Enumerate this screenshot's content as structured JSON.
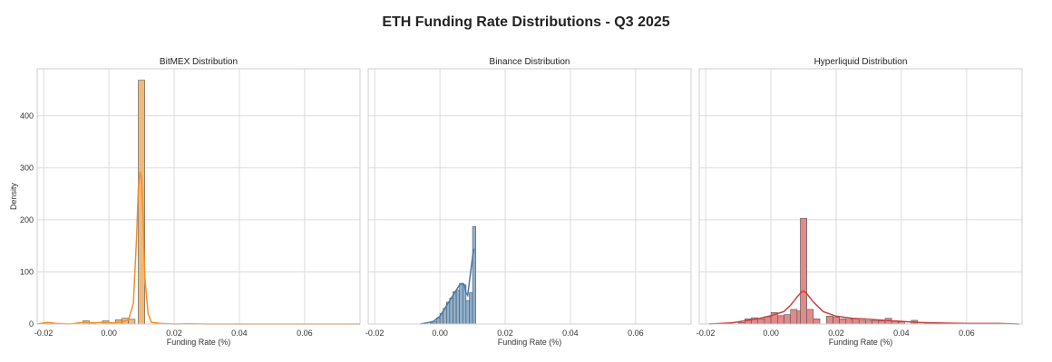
{
  "title": "ETH Funding Rate Distributions - Q3 2025",
  "chart_data": [
    {
      "type": "histogram",
      "title": "BitMEX Distribution",
      "xlabel": "Funding Rate (%)",
      "ylabel": "Density",
      "xlim": [
        -0.022,
        0.077
      ],
      "ylim": [
        0,
        490
      ],
      "xticks": [
        "-0.02",
        "0.00",
        "0.02",
        "0.04",
        "0.06"
      ],
      "yticks": [
        "0",
        "100",
        "200",
        "300",
        "400"
      ],
      "grid": true,
      "bar_color": "#f0b97a",
      "line_color": "#f28e2b",
      "bins": [
        {
          "x0": -0.02,
          "x1": -0.018,
          "y": 3
        },
        {
          "x0": -0.008,
          "x1": -0.006,
          "y": 6
        },
        {
          "x0": -0.006,
          "x1": -0.004,
          "y": 3
        },
        {
          "x0": -0.002,
          "x1": 0.0,
          "y": 6
        },
        {
          "x0": 0.002,
          "x1": 0.004,
          "y": 8
        },
        {
          "x0": 0.004,
          "x1": 0.006,
          "y": 11
        },
        {
          "x0": 0.006,
          "x1": 0.008,
          "y": 9
        },
        {
          "x0": 0.009,
          "x1": 0.011,
          "y": 468
        },
        {
          "x0": 0.023,
          "x1": 0.025,
          "y": 1
        }
      ],
      "kde": [
        [
          -0.022,
          0
        ],
        [
          -0.019,
          3
        ],
        [
          -0.016,
          1
        ],
        [
          -0.012,
          0
        ],
        [
          -0.008,
          3
        ],
        [
          -0.005,
          2
        ],
        [
          -0.002,
          3
        ],
        [
          0.001,
          2
        ],
        [
          0.004,
          4
        ],
        [
          0.006,
          8
        ],
        [
          0.0075,
          40
        ],
        [
          0.0085,
          170
        ],
        [
          0.009,
          260
        ],
        [
          0.0095,
          292
        ],
        [
          0.01,
          280
        ],
        [
          0.0105,
          200
        ],
        [
          0.011,
          90
        ],
        [
          0.012,
          20
        ],
        [
          0.013,
          3
        ],
        [
          0.016,
          1
        ],
        [
          0.02,
          0
        ],
        [
          0.025,
          0.5
        ],
        [
          0.03,
          0
        ],
        [
          0.077,
          0
        ]
      ]
    },
    {
      "type": "histogram",
      "title": "Binance Distribution",
      "xlabel": "Funding Rate (%)",
      "ylabel": "",
      "xlim": [
        -0.022,
        0.077
      ],
      "ylim": [
        0,
        490
      ],
      "xticks": [
        "-0.02",
        "0.00",
        "0.02",
        "0.04",
        "0.06"
      ],
      "yticks": [],
      "grid": true,
      "bar_color": "#8fb0d0",
      "line_color": "#4a78a8",
      "bins": [
        {
          "x0": -0.003,
          "x1": -0.002,
          "y": 2
        },
        {
          "x0": -0.002,
          "x1": -0.001,
          "y": 5
        },
        {
          "x0": -0.001,
          "x1": 0.0,
          "y": 12
        },
        {
          "x0": 0.0,
          "x1": 0.001,
          "y": 20
        },
        {
          "x0": 0.001,
          "x1": 0.002,
          "y": 30
        },
        {
          "x0": 0.002,
          "x1": 0.003,
          "y": 42
        },
        {
          "x0": 0.003,
          "x1": 0.004,
          "y": 50
        },
        {
          "x0": 0.004,
          "x1": 0.005,
          "y": 62
        },
        {
          "x0": 0.005,
          "x1": 0.006,
          "y": 65
        },
        {
          "x0": 0.006,
          "x1": 0.007,
          "y": 78
        },
        {
          "x0": 0.007,
          "x1": 0.008,
          "y": 75
        },
        {
          "x0": 0.008,
          "x1": 0.009,
          "y": 45
        },
        {
          "x0": 0.009,
          "x1": 0.01,
          "y": 60
        },
        {
          "x0": 0.01,
          "x1": 0.011,
          "y": 187
        }
      ],
      "kde": [
        [
          -0.006,
          0
        ],
        [
          -0.004,
          2
        ],
        [
          -0.002,
          5
        ],
        [
          0.0,
          15
        ],
        [
          0.002,
          35
        ],
        [
          0.004,
          55
        ],
        [
          0.006,
          75
        ],
        [
          0.007,
          78
        ],
        [
          0.0075,
          75
        ],
        [
          0.008,
          60
        ],
        [
          0.0085,
          55
        ],
        [
          0.009,
          80
        ],
        [
          0.0095,
          105
        ],
        [
          0.01,
          130
        ],
        [
          0.0105,
          145
        ]
      ]
    },
    {
      "type": "histogram",
      "title": "Hyperliquid Distribution",
      "xlabel": "Funding Rate (%)",
      "ylabel": "",
      "xlim": [
        -0.022,
        0.077
      ],
      "ylim": [
        0,
        490
      ],
      "xticks": [
        "-0.02",
        "0.00",
        "0.02",
        "0.04",
        "0.06"
      ],
      "yticks": [],
      "grid": true,
      "bar_color": "#e08a8a",
      "line_color": "#c84040",
      "bins": [
        {
          "x0": -0.01,
          "x1": -0.008,
          "y": 3
        },
        {
          "x0": -0.008,
          "x1": -0.006,
          "y": 10
        },
        {
          "x0": -0.006,
          "x1": -0.004,
          "y": 12
        },
        {
          "x0": -0.004,
          "x1": -0.002,
          "y": 10
        },
        {
          "x0": -0.002,
          "x1": 0.0,
          "y": 14
        },
        {
          "x0": 0.0,
          "x1": 0.002,
          "y": 22
        },
        {
          "x0": 0.002,
          "x1": 0.004,
          "y": 16
        },
        {
          "x0": 0.004,
          "x1": 0.006,
          "y": 18
        },
        {
          "x0": 0.006,
          "x1": 0.008,
          "y": 28
        },
        {
          "x0": 0.008,
          "x1": 0.009,
          "y": 25
        },
        {
          "x0": 0.009,
          "x1": 0.011,
          "y": 203
        },
        {
          "x0": 0.011,
          "x1": 0.013,
          "y": 28
        },
        {
          "x0": 0.013,
          "x1": 0.015,
          "y": 10
        },
        {
          "x0": 0.017,
          "x1": 0.019,
          "y": 15
        },
        {
          "x0": 0.019,
          "x1": 0.021,
          "y": 13
        },
        {
          "x0": 0.021,
          "x1": 0.023,
          "y": 10
        },
        {
          "x0": 0.023,
          "x1": 0.025,
          "y": 9
        },
        {
          "x0": 0.025,
          "x1": 0.027,
          "y": 10
        },
        {
          "x0": 0.027,
          "x1": 0.029,
          "y": 7
        },
        {
          "x0": 0.029,
          "x1": 0.031,
          "y": 6
        },
        {
          "x0": 0.031,
          "x1": 0.033,
          "y": 7
        },
        {
          "x0": 0.033,
          "x1": 0.035,
          "y": 6
        },
        {
          "x0": 0.035,
          "x1": 0.037,
          "y": 11
        },
        {
          "x0": 0.037,
          "x1": 0.039,
          "y": 6
        },
        {
          "x0": 0.039,
          "x1": 0.041,
          "y": 4
        },
        {
          "x0": 0.043,
          "x1": 0.045,
          "y": 7
        },
        {
          "x0": 0.047,
          "x1": 0.049,
          "y": 2
        },
        {
          "x0": 0.053,
          "x1": 0.055,
          "y": 1
        },
        {
          "x0": 0.069,
          "x1": 0.071,
          "y": 1
        }
      ],
      "kde": [
        [
          -0.019,
          0
        ],
        [
          -0.012,
          2
        ],
        [
          -0.008,
          6
        ],
        [
          -0.004,
          10
        ],
        [
          0.0,
          16
        ],
        [
          0.004,
          24
        ],
        [
          0.006,
          36
        ],
        [
          0.008,
          52
        ],
        [
          0.0095,
          62
        ],
        [
          0.01,
          63
        ],
        [
          0.011,
          58
        ],
        [
          0.013,
          42
        ],
        [
          0.016,
          24
        ],
        [
          0.02,
          15
        ],
        [
          0.025,
          11
        ],
        [
          0.03,
          9
        ],
        [
          0.035,
          7
        ],
        [
          0.04,
          5
        ],
        [
          0.045,
          3
        ],
        [
          0.05,
          2
        ],
        [
          0.06,
          1
        ],
        [
          0.07,
          1
        ],
        [
          0.076,
          0
        ]
      ]
    }
  ]
}
